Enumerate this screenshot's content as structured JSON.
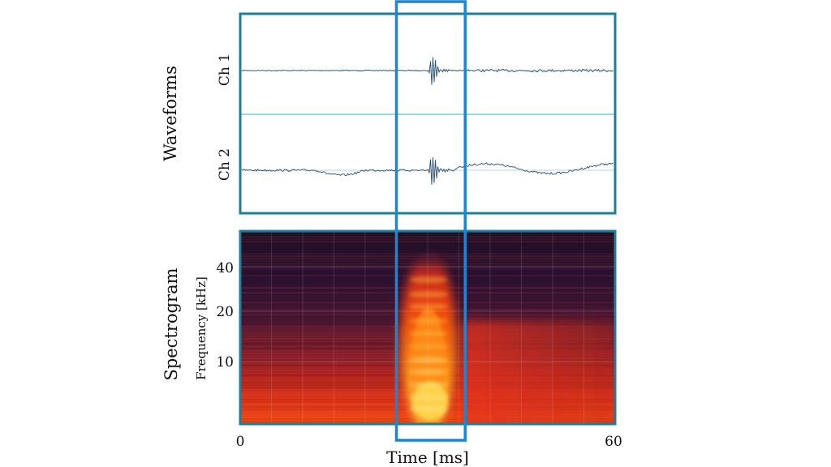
{
  "colors": {
    "frame": "#1f7d99",
    "highlight": "#1a86d6",
    "trace": "#2a4f6e",
    "baseline": "#5fbfd0"
  },
  "chart_data": [
    {
      "type": "line",
      "title": "Waveforms",
      "channels": [
        "Ch 1",
        "Ch 2"
      ],
      "xlabel": "Time [ms]",
      "xlim": [
        0,
        60
      ],
      "ylabel": "",
      "event_window_ms": [
        25,
        36
      ],
      "event_peak_ms": [
        30.5,
        30.5
      ]
    },
    {
      "type": "heatmap",
      "title": "Spectrogram",
      "ylabel": "Frequency [kHz]",
      "xlabel": "Time [ms]",
      "xlim": [
        0,
        60
      ],
      "x_ticks": [
        "0",
        "60"
      ],
      "y_ticks": [
        "10",
        "20",
        "40"
      ],
      "colormap": "inferno",
      "event_window_ms": [
        25,
        36
      ]
    }
  ]
}
